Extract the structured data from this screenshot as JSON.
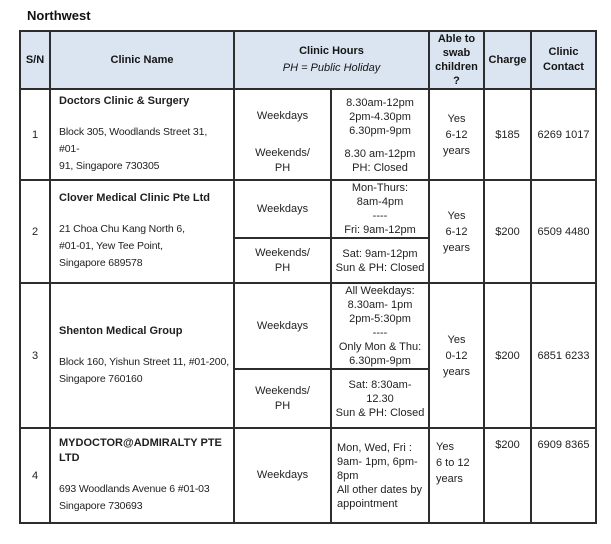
{
  "title": "Northwest",
  "table": {
    "headers": {
      "sn": "S/N",
      "clinic_name": "Clinic Name",
      "hours_title": "Clinic Hours",
      "hours_subtitle": "PH = Public Holiday",
      "swab_lines": [
        "Able to",
        "swab",
        "children",
        "?"
      ],
      "charge": "Charge",
      "contact_lines": [
        "Clinic",
        "Contact"
      ]
    },
    "rows": [
      {
        "sn": "1",
        "name": "Doctors Clinic & Surgery",
        "address_lines": [
          "Block 305, Woodlands Street 31, #01-",
          "91, Singapore 730305"
        ],
        "hours_segments": [
          {
            "label_lines": [
              "Weekdays"
            ],
            "hour_lines": [
              "8.30am-12pm",
              "2pm-4.30pm",
              "6.30pm-9pm"
            ]
          },
          {
            "label_lines": [
              "Weekends/",
              "PH"
            ],
            "hour_lines": [
              "8.30 am-12pm",
              "PH: Closed"
            ]
          }
        ],
        "segment_divider": false,
        "swab_lines": [
          "Yes",
          "6-12",
          "years"
        ],
        "charge": "$185",
        "contact": "6269 1017"
      },
      {
        "sn": "2",
        "name": "Clover Medical Clinic Pte Ltd",
        "address_lines": [
          "21 Choa Chu Kang North 6,",
          "#01-01, Yew Tee Point,",
          "Singapore 689578"
        ],
        "hours_segments": [
          {
            "label_lines": [
              "Weekdays"
            ],
            "hour_lines": [
              "Mon-Thurs:",
              "8am-4pm",
              "----",
              "Fri: 9am-12pm"
            ]
          },
          {
            "label_lines": [
              "Weekends/",
              "PH"
            ],
            "hour_lines": [
              "Sat: 9am-12pm",
              "Sun & PH: Closed"
            ]
          }
        ],
        "segment_divider": true,
        "swab_lines": [
          "Yes",
          "6-12",
          "years"
        ],
        "charge": "$200",
        "contact": "6509 4480"
      },
      {
        "sn": "3",
        "name": "Shenton Medical Group",
        "address_lines": [
          "Block 160, Yishun Street 11, #01-200,",
          "Singapore 760160"
        ],
        "hours_segments": [
          {
            "label_lines": [
              "Weekdays"
            ],
            "hour_lines": [
              "All Weekdays:",
              "8.30am- 1pm",
              "2pm-5:30pm",
              "----",
              "Only Mon & Thu:",
              "6.30pm-9pm"
            ]
          },
          {
            "label_lines": [
              "Weekends/",
              "PH"
            ],
            "hour_lines": [
              "Sat: 8:30am-",
              "12.30",
              "Sun & PH: Closed"
            ]
          }
        ],
        "segment_divider": true,
        "swab_lines": [
          "Yes",
          "0-12",
          "years"
        ],
        "charge": "$200",
        "contact": "6851 6233"
      },
      {
        "sn": "4",
        "name": "MYDOCTOR@ADMIRALTY PTE LTD",
        "address_lines": [
          "693 Woodlands Avenue 6 #01-03",
          "Singapore 730693"
        ],
        "hours_segments": [
          {
            "label_lines": [
              "Weekdays"
            ],
            "hour_lines": [
              "Mon, Wed, Fri :",
              "9am- 1pm, 6pm-",
              "8pm",
              "All other dates by",
              "appointment"
            ]
          }
        ],
        "segment_divider": false,
        "swab_lines": [
          "Yes",
          "6 to 12",
          "years"
        ],
        "charge": "$200",
        "contact": "6909 8365"
      }
    ]
  }
}
